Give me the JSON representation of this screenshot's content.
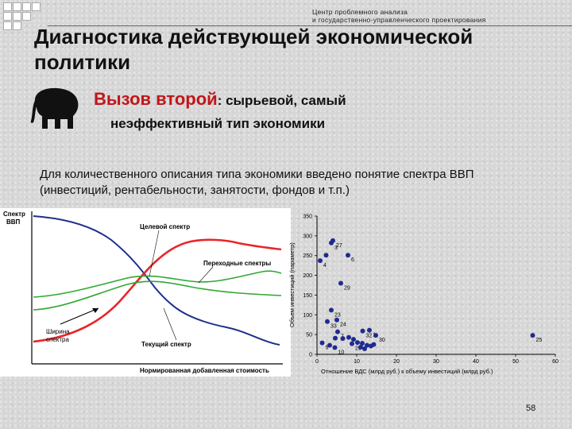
{
  "header": {
    "org_line1": "Центр проблемного анализа",
    "org_line2": "и государственно-управленческого проектирования"
  },
  "title": "Диагностика действующей экономической политики",
  "subtitle": {
    "highlight": "Вызов второй",
    "rest": ": сырьевой, самый",
    "line2": "неэффективный тип экономики"
  },
  "paragraph": "Для количественного описания типа экономики введено понятие спектра ВВП (инвестиций, рентабельности, занятости, фондов и т.п.)",
  "spectrum_diagram": {
    "ylabel_line1": "Спектр",
    "ylabel_line2": "ВВП",
    "target_label": "Целевой спектр",
    "transitional_label": "Переходные спектры",
    "current_label": "Текущий спектр",
    "width_label_line1": "Ширина",
    "width_label_line2": "спектра",
    "xlabel": "Нормированная добавленная стоимость",
    "colors": {
      "target": "#e8262a",
      "transitional": "#2fa832",
      "current": "#1e2f8c"
    }
  },
  "chart_data": {
    "type": "scatter",
    "title": "",
    "xlabel": "Отношение ВДС (млрд руб.) к объему инвестиций (млрд руб.)",
    "ylabel": "Объем инвестиций (параметр)",
    "xlim": [
      0,
      60
    ],
    "ylim": [
      0,
      350
    ],
    "xticks": [
      "0",
      "10",
      "20",
      "30",
      "40",
      "50",
      "60"
    ],
    "yticks": [
      "0",
      "50",
      "100",
      "150",
      "200",
      "250",
      "300",
      "350"
    ],
    "grid": false,
    "marker_color": "#1f2b8f",
    "points": [
      {
        "x": 4.0,
        "y": 288,
        "label": "27"
      },
      {
        "x": 3.6,
        "y": 282,
        "label": "3"
      },
      {
        "x": 2.3,
        "y": 251,
        "label": ""
      },
      {
        "x": 7.8,
        "y": 251,
        "label": "6"
      },
      {
        "x": 0.8,
        "y": 237,
        "label": "4"
      },
      {
        "x": 6.0,
        "y": 180,
        "label": "29"
      },
      {
        "x": 3.6,
        "y": 112,
        "label": "23"
      },
      {
        "x": 2.6,
        "y": 83,
        "label": "33"
      },
      {
        "x": 5.0,
        "y": 87,
        "label": "24"
      },
      {
        "x": 5.2,
        "y": 57,
        "label": "7"
      },
      {
        "x": 11.5,
        "y": 59,
        "label": "32"
      },
      {
        "x": 13.2,
        "y": 61,
        "label": "1"
      },
      {
        "x": 14.8,
        "y": 48,
        "label": "30"
      },
      {
        "x": 54.3,
        "y": 48,
        "label": "25"
      },
      {
        "x": 1.3,
        "y": 29,
        "label": "5"
      },
      {
        "x": 3.2,
        "y": 23,
        "label": ""
      },
      {
        "x": 4.5,
        "y": 17,
        "label": "10"
      },
      {
        "x": 8.8,
        "y": 27,
        "label": "26"
      },
      {
        "x": 4.6,
        "y": 41,
        "label": ""
      },
      {
        "x": 6.5,
        "y": 40,
        "label": ""
      },
      {
        "x": 8.0,
        "y": 43,
        "label": ""
      },
      {
        "x": 9.2,
        "y": 38,
        "label": ""
      },
      {
        "x": 10.2,
        "y": 30,
        "label": ""
      },
      {
        "x": 11.4,
        "y": 28,
        "label": ""
      },
      {
        "x": 12.6,
        "y": 23,
        "label": ""
      },
      {
        "x": 13.6,
        "y": 21,
        "label": ""
      },
      {
        "x": 14.3,
        "y": 25,
        "label": ""
      },
      {
        "x": 11.0,
        "y": 18,
        "label": ""
      },
      {
        "x": 12.0,
        "y": 14,
        "label": ""
      }
    ]
  },
  "page_number": "58"
}
